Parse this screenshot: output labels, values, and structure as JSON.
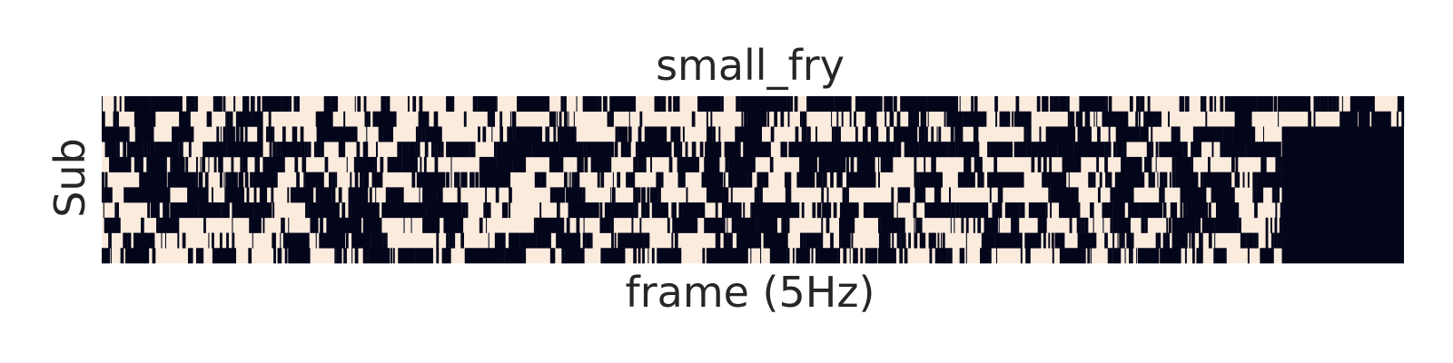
{
  "chart_data": {
    "type": "heatmap",
    "title": "small_fry",
    "xlabel": "frame (5Hz)",
    "ylabel": "Sub",
    "rows": 11,
    "frames": 1600,
    "missing_from_frame": 1450,
    "rows_full_to_end": [
      0,
      1
    ],
    "values": "binary (0 = off, 1 = on); per-row sequence not legible in image",
    "on_fractions": [
      0.62,
      0.38,
      0.5,
      0.7,
      0.42,
      0.55,
      0.45,
      0.6,
      0.4,
      0.48,
      0.44
    ],
    "colors": {
      "on": "#03051a",
      "off": "#faebdd"
    },
    "grid": false,
    "xticks": [],
    "yticks": []
  }
}
